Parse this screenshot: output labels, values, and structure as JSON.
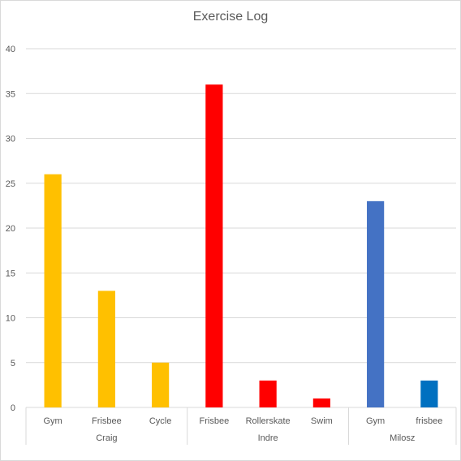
{
  "chart_data": {
    "type": "bar",
    "title": "Exercise Log",
    "xlabel": "",
    "ylabel": "",
    "ylim": [
      0,
      40
    ],
    "yticks": [
      0,
      5,
      10,
      15,
      20,
      25,
      30,
      35,
      40
    ],
    "grid": true,
    "legend": "none",
    "groups": [
      {
        "name": "Craig",
        "color": "#FFC000",
        "bars": [
          {
            "category": "Gym",
            "value": 26
          },
          {
            "category": "Frisbee",
            "value": 13
          },
          {
            "category": "Cycle",
            "value": 5
          }
        ]
      },
      {
        "name": "Indre",
        "color": "#FF0000",
        "bars": [
          {
            "category": "Frisbee",
            "value": 36
          },
          {
            "category": "Rollerskate",
            "value": 3
          },
          {
            "category": "Swim",
            "value": 1
          }
        ]
      },
      {
        "name": "Milosz",
        "color": "#4472C4",
        "bars": [
          {
            "category": "Gym",
            "value": 23
          },
          {
            "category": "frisbee",
            "value": 3,
            "color": "#0070C0"
          }
        ]
      }
    ]
  }
}
